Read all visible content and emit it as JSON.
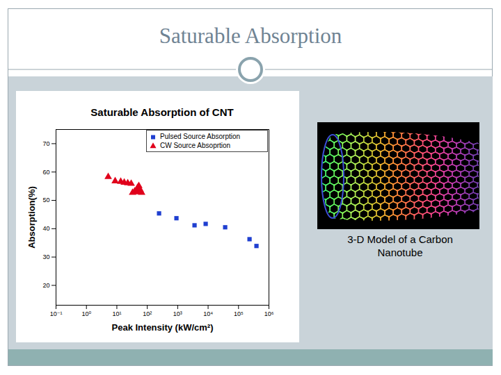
{
  "slide_title": "Saturable Absorption",
  "image_caption": "3-D Model of a Carbon Nanotube",
  "chart_data": {
    "type": "scatter",
    "title": "Saturable Absorption of CNT",
    "x_label": "Peak Intensity (kW/cm²)",
    "y_label": "Absorption(%)",
    "log": "x",
    "grid": false,
    "legend": "top-right",
    "xlim": [
      0.1,
      1000000
    ],
    "xticks": [
      {
        "value": 0.1,
        "label": "10⁻¹"
      },
      {
        "value": 1,
        "label": "10⁰"
      },
      {
        "value": 10,
        "label": "10¹"
      },
      {
        "value": 100,
        "label": "10²"
      },
      {
        "value": 1000,
        "label": "10³"
      },
      {
        "value": 10000,
        "label": "10⁴"
      },
      {
        "value": 100000,
        "label": "10⁵"
      },
      {
        "value": 1000000,
        "label": "10⁶"
      }
    ],
    "ylim": [
      13,
      75
    ],
    "yticks": [
      20,
      30,
      40,
      50,
      60,
      70
    ],
    "series": [
      {
        "name": "Pulsed Source Absorption",
        "color": "#1f3fd0",
        "marker": "square",
        "x": [
          244,
          910,
          3580,
          8320,
          36400,
          230000,
          389000
        ],
        "values": [
          45.4,
          43.7,
          41.2,
          41.7,
          40.5,
          36.3,
          33.9
        ]
      },
      {
        "name": "CW Source Absoprtion",
        "color": "#e0001b",
        "marker": "triangle",
        "x": [
          5.2,
          8.8,
          13.4,
          17.5,
          22.8,
          29.6,
          32.9,
          38.5,
          47.6,
          52.8,
          58.7,
          65.3,
          47.0
        ],
        "values": [
          58.3,
          56.8,
          56.6,
          56.3,
          56.1,
          55.9,
          52.7,
          53.2,
          54.4,
          55.1,
          53.7,
          52.7,
          52.9
        ]
      }
    ]
  }
}
